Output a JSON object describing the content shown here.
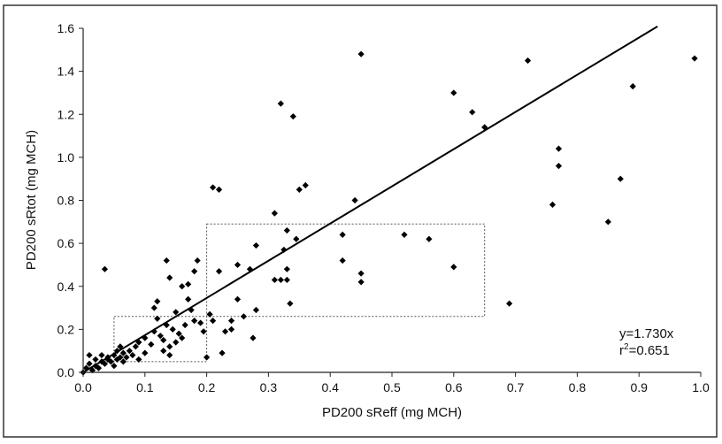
{
  "chart_data": {
    "type": "scatter",
    "xlabel": "PD200 sReff (mg MCH)",
    "ylabel": "PD200 sRtot (mg MCH)",
    "xlim": [
      0,
      1.0
    ],
    "ylim": [
      0,
      1.6
    ],
    "xticks": [
      "0.0",
      "0.1",
      "0.2",
      "0.3",
      "0.4",
      "0.5",
      "0.6",
      "0.7",
      "0.8",
      "0.9",
      "1.0"
    ],
    "yticks": [
      "0.0",
      "0.2",
      "0.4",
      "0.6",
      "0.8",
      "1.0",
      "1.2",
      "1.4",
      "1.6"
    ],
    "grid": false,
    "trendline": {
      "slope": 1.73,
      "x": [
        0,
        0.93
      ]
    },
    "annotation": {
      "equation": "y=1.730x",
      "r2_prefix": "r",
      "r2_sup": "2",
      "r2_value": "=0.651"
    },
    "boxes": [
      {
        "x": [
          0.05,
          0.2
        ],
        "y": [
          0.05,
          0.26
        ]
      },
      {
        "x": [
          0.2,
          0.65
        ],
        "y": [
          0.26,
          0.69
        ]
      }
    ],
    "points": [
      [
        0.0,
        0.0
      ],
      [
        0.005,
        0.02
      ],
      [
        0.01,
        0.04
      ],
      [
        0.01,
        0.08
      ],
      [
        0.015,
        0.01
      ],
      [
        0.02,
        0.03
      ],
      [
        0.02,
        0.06
      ],
      [
        0.025,
        0.02
      ],
      [
        0.03,
        0.05
      ],
      [
        0.03,
        0.08
      ],
      [
        0.035,
        0.04
      ],
      [
        0.035,
        0.48
      ],
      [
        0.04,
        0.06
      ],
      [
        0.04,
        0.07
      ],
      [
        0.045,
        0.05
      ],
      [
        0.05,
        0.03
      ],
      [
        0.05,
        0.08
      ],
      [
        0.055,
        0.06
      ],
      [
        0.055,
        0.1
      ],
      [
        0.06,
        0.07
      ],
      [
        0.06,
        0.12
      ],
      [
        0.065,
        0.05
      ],
      [
        0.065,
        0.09
      ],
      [
        0.07,
        0.07
      ],
      [
        0.075,
        0.1
      ],
      [
        0.08,
        0.08
      ],
      [
        0.085,
        0.12
      ],
      [
        0.09,
        0.06
      ],
      [
        0.09,
        0.14
      ],
      [
        0.1,
        0.09
      ],
      [
        0.1,
        0.16
      ],
      [
        0.11,
        0.13
      ],
      [
        0.115,
        0.19
      ],
      [
        0.115,
        0.3
      ],
      [
        0.12,
        0.25
      ],
      [
        0.12,
        0.33
      ],
      [
        0.125,
        0.17
      ],
      [
        0.13,
        0.1
      ],
      [
        0.13,
        0.15
      ],
      [
        0.135,
        0.22
      ],
      [
        0.135,
        0.52
      ],
      [
        0.14,
        0.12
      ],
      [
        0.14,
        0.44
      ],
      [
        0.14,
        0.08
      ],
      [
        0.145,
        0.2
      ],
      [
        0.15,
        0.14
      ],
      [
        0.15,
        0.28
      ],
      [
        0.155,
        0.18
      ],
      [
        0.16,
        0.16
      ],
      [
        0.16,
        0.4
      ],
      [
        0.165,
        0.22
      ],
      [
        0.17,
        0.34
      ],
      [
        0.17,
        0.41
      ],
      [
        0.175,
        0.29
      ],
      [
        0.18,
        0.24
      ],
      [
        0.18,
        0.47
      ],
      [
        0.185,
        0.52
      ],
      [
        0.19,
        0.23
      ],
      [
        0.195,
        0.19
      ],
      [
        0.2,
        0.07
      ],
      [
        0.205,
        0.27
      ],
      [
        0.21,
        0.24
      ],
      [
        0.21,
        0.86
      ],
      [
        0.22,
        0.85
      ],
      [
        0.22,
        0.47
      ],
      [
        0.225,
        0.09
      ],
      [
        0.23,
        0.19
      ],
      [
        0.24,
        0.2
      ],
      [
        0.24,
        0.24
      ],
      [
        0.25,
        0.5
      ],
      [
        0.25,
        0.34
      ],
      [
        0.26,
        0.26
      ],
      [
        0.27,
        0.48
      ],
      [
        0.275,
        0.16
      ],
      [
        0.28,
        0.59
      ],
      [
        0.28,
        0.29
      ],
      [
        0.31,
        0.74
      ],
      [
        0.31,
        0.43
      ],
      [
        0.32,
        1.25
      ],
      [
        0.32,
        0.43
      ],
      [
        0.325,
        0.57
      ],
      [
        0.33,
        0.66
      ],
      [
        0.33,
        0.48
      ],
      [
        0.33,
        0.43
      ],
      [
        0.335,
        0.32
      ],
      [
        0.34,
        1.19
      ],
      [
        0.345,
        0.62
      ],
      [
        0.35,
        0.85
      ],
      [
        0.36,
        0.87
      ],
      [
        0.42,
        0.64
      ],
      [
        0.42,
        0.52
      ],
      [
        0.44,
        0.8
      ],
      [
        0.45,
        1.48
      ],
      [
        0.45,
        0.46
      ],
      [
        0.45,
        0.42
      ],
      [
        0.52,
        0.64
      ],
      [
        0.56,
        0.62
      ],
      [
        0.6,
        1.3
      ],
      [
        0.6,
        0.49
      ],
      [
        0.63,
        1.21
      ],
      [
        0.65,
        1.14
      ],
      [
        0.69,
        0.32
      ],
      [
        0.72,
        1.45
      ],
      [
        0.76,
        0.78
      ],
      [
        0.77,
        1.04
      ],
      [
        0.77,
        0.96
      ],
      [
        0.85,
        0.7
      ],
      [
        0.87,
        0.9
      ],
      [
        0.89,
        1.33
      ],
      [
        0.99,
        1.46
      ]
    ]
  }
}
